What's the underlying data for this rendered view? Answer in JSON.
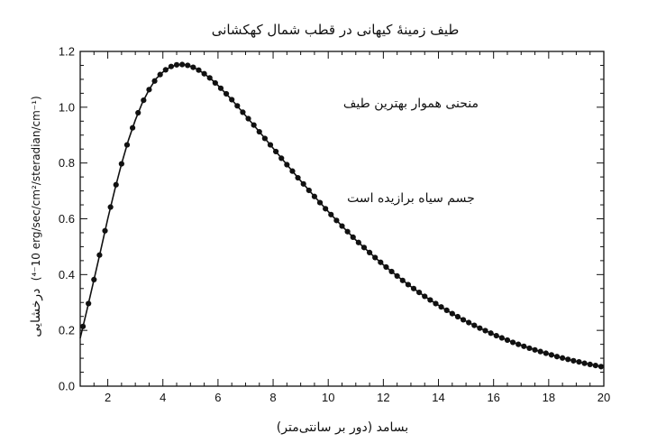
{
  "chart_data": {
    "type": "scatter",
    "title": "طیف زمینهٔ کیهانی در قطب شمال کهکشانی",
    "xlabel": "بسامد (دور بر سانتی‌متر)",
    "ylabel_fa": "درخشایی",
    "ylabel_unit": "(10⁻⁴ erg/sec/cm²/steradian/cm⁻¹)",
    "xlim": [
      1,
      20
    ],
    "ylim": [
      0,
      1.2
    ],
    "xticks": [
      "2",
      "4",
      "6",
      "8",
      "10",
      "12",
      "14",
      "16",
      "18",
      "20"
    ],
    "xtick_values": [
      2,
      4,
      6,
      8,
      10,
      12,
      14,
      16,
      18,
      20
    ],
    "yticks": [
      "0.0",
      "0.2",
      "0.4",
      "0.6",
      "0.8",
      "1.0",
      "1.2"
    ],
    "ytick_values": [
      0,
      0.2,
      0.4,
      0.6,
      0.8,
      1.0,
      1.2
    ],
    "annotations": [
      {
        "name": "annotation-smooth-curve",
        "text": "منحنی هموار بهترین طیف",
        "x": 13.0,
        "y": 1.0
      },
      {
        "name": "annotation-blackbody",
        "text": "جسم سیاه برازیده است",
        "x": 13.0,
        "y": 0.66
      }
    ],
    "series": [
      {
        "kind": "points",
        "x": [
          1.1,
          1.3,
          1.5,
          1.7,
          1.9,
          2.1,
          2.3,
          2.5,
          2.7,
          2.9,
          3.1,
          3.3,
          3.5,
          3.7,
          3.9,
          4.1,
          4.3,
          4.5,
          4.7,
          4.9,
          5.1,
          5.3,
          5.5,
          5.7,
          5.9,
          6.1,
          6.3,
          6.5,
          6.7,
          6.9,
          7.1,
          7.3,
          7.5,
          7.7,
          7.9,
          8.1,
          8.3,
          8.5,
          8.7,
          8.9,
          9.1,
          9.3,
          9.5,
          9.7,
          9.9,
          10.1,
          10.3,
          10.5,
          10.7,
          10.9,
          11.1,
          11.3,
          11.5,
          11.7,
          11.9,
          12.1,
          12.3,
          12.5,
          12.7,
          12.9,
          13.1,
          13.3,
          13.5,
          13.7,
          13.9,
          14.1,
          14.3,
          14.5,
          14.7,
          14.9,
          15.1,
          15.3,
          15.5,
          15.7,
          15.9,
          16.1,
          16.3,
          16.5,
          16.7,
          16.9,
          17.1,
          17.3,
          17.5,
          17.7,
          17.9,
          18.1,
          18.3,
          18.5,
          18.7,
          18.9,
          19.1,
          19.3,
          19.5,
          19.7,
          19.9
        ],
        "y": [
          0.214,
          0.296,
          0.382,
          0.47,
          0.557,
          0.642,
          0.722,
          0.797,
          0.865,
          0.926,
          0.98,
          1.025,
          1.063,
          1.094,
          1.117,
          1.134,
          1.146,
          1.152,
          1.153,
          1.15,
          1.143,
          1.133,
          1.12,
          1.105,
          1.087,
          1.068,
          1.048,
          1.027,
          1.005,
          0.982,
          0.959,
          0.936,
          0.912,
          0.888,
          0.865,
          0.841,
          0.817,
          0.794,
          0.771,
          0.747,
          0.725,
          0.702,
          0.68,
          0.658,
          0.636,
          0.615,
          0.594,
          0.574,
          0.554,
          0.534,
          0.515,
          0.497,
          0.479,
          0.461,
          0.444,
          0.427,
          0.411,
          0.395,
          0.379,
          0.364,
          0.35,
          0.336,
          0.322,
          0.309,
          0.296,
          0.284,
          0.272,
          0.26,
          0.249,
          0.238,
          0.228,
          0.218,
          0.208,
          0.199,
          0.19,
          0.181,
          0.173,
          0.165,
          0.157,
          0.15,
          0.143,
          0.136,
          0.13,
          0.124,
          0.118,
          0.112,
          0.106,
          0.101,
          0.096,
          0.091,
          0.087,
          0.082,
          0.078,
          0.074,
          0.07
        ]
      },
      {
        "kind": "curve",
        "x": [
          1.0,
          1.25,
          1.5,
          1.75,
          2.0,
          2.25,
          2.5,
          2.75,
          3.0,
          3.25,
          3.5,
          3.75,
          4.0,
          4.25,
          4.5,
          4.75,
          5.0,
          5.25,
          5.5,
          5.75,
          6.0,
          6.5,
          7.0,
          7.5,
          8.0,
          8.5,
          9.0,
          9.5,
          10.0,
          10.5,
          11.0,
          11.5,
          12.0,
          12.5,
          13.0,
          13.5,
          14.0,
          14.5,
          15.0,
          15.5,
          16.0,
          16.5,
          17.0,
          17.5,
          18.0,
          18.5,
          19.0,
          19.5,
          20.0
        ],
        "y": [
          0.172,
          0.275,
          0.382,
          0.49,
          0.6,
          0.702,
          0.797,
          0.882,
          0.954,
          1.015,
          1.063,
          1.102,
          1.126,
          1.143,
          1.152,
          1.153,
          1.147,
          1.136,
          1.12,
          1.101,
          1.078,
          1.027,
          0.97,
          0.912,
          0.853,
          0.794,
          0.736,
          0.68,
          0.626,
          0.574,
          0.524,
          0.479,
          0.435,
          0.395,
          0.357,
          0.322,
          0.29,
          0.26,
          0.233,
          0.208,
          0.186,
          0.165,
          0.147,
          0.13,
          0.115,
          0.101,
          0.089,
          0.078,
          0.068
        ]
      }
    ]
  }
}
